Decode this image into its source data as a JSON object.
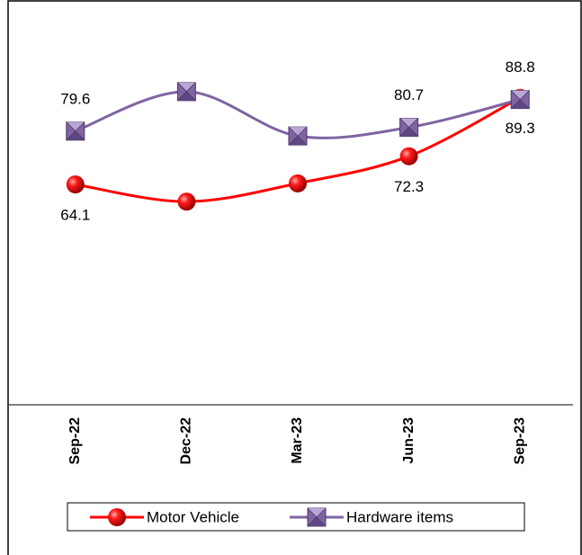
{
  "chart_data": {
    "type": "line",
    "categories": [
      "Sep-22",
      "Dec-22",
      "Mar-23",
      "Jun-23",
      "Sep-23"
    ],
    "series": [
      {
        "name": "Motor Vehicle",
        "color": "#ff0000",
        "values": [
          64.1,
          59.1,
          64.4,
          72.3,
          89.3
        ],
        "value_labels": [
          "64.1",
          null,
          null,
          "72.3",
          "89.3"
        ]
      },
      {
        "name": "Hardware items",
        "color": "#8064a2",
        "values": [
          79.6,
          91.1,
          78.2,
          80.7,
          88.8
        ],
        "value_labels": [
          "79.6",
          null,
          null,
          "80.7",
          "88.8"
        ]
      }
    ],
    "ylim": [
      0,
      115
    ],
    "smooth": true,
    "legend": "bottom"
  }
}
